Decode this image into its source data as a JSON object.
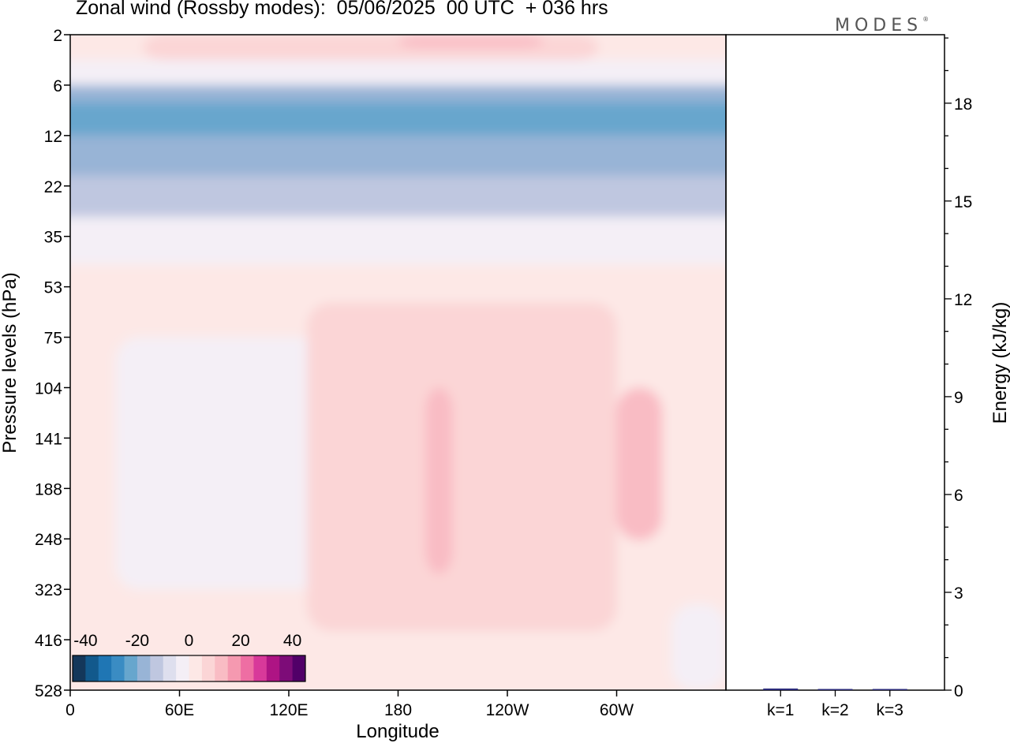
{
  "title": "Zonal wind (Rossby modes):  05/06/2025  00 UTC  + 036 hrs",
  "brand": "MODES",
  "brand_mark": "®",
  "chart_data": [
    {
      "type": "heatmap",
      "title": "Zonal wind (Rossby modes):  05/06/2025  00 UTC  + 036 hrs",
      "xlabel": "Longitude",
      "ylabel": "Pressure levels (hPa)",
      "xticks": [
        "0",
        "60E",
        "120E",
        "180",
        "120W",
        "60W"
      ],
      "xrange_deg_east": [
        0,
        360
      ],
      "yticks": [
        "2",
        "6",
        "12",
        "22",
        "35",
        "53",
        "75",
        "104",
        "141",
        "188",
        "248",
        "323",
        "416",
        "528"
      ],
      "colorbar": {
        "ticks": [
          "-40",
          "-20",
          "0",
          "20",
          "40"
        ],
        "range": [
          -45,
          45
        ],
        "colors": [
          "#14375a",
          "#12598c",
          "#1f76b4",
          "#3a8cc3",
          "#67a6cd",
          "#98b4d6",
          "#bfc7e0",
          "#dedfee",
          "#f4eff6",
          "#fde8e6",
          "#fbd5d6",
          "#f9bcc4",
          "#f599b0",
          "#ee6ea3",
          "#d8399a",
          "#ae1484",
          "#7d0c78",
          "#510068"
        ]
      },
      "regions": [
        {
          "lev_range": [
            "2",
            "4"
          ],
          "lon_range": [
            40,
            290
          ],
          "value": 5
        },
        {
          "lev_range": [
            "2",
            "3"
          ],
          "lon_range": [
            180,
            260
          ],
          "value": 10
        },
        {
          "lev_range": [
            "4",
            "6"
          ],
          "lon_range": [
            0,
            360
          ],
          "value": -5
        },
        {
          "lev_range": [
            "6",
            "8"
          ],
          "lon_range": [
            0,
            360
          ],
          "value": -20
        },
        {
          "lev_range": [
            "8",
            "12"
          ],
          "lon_range": [
            0,
            360
          ],
          "value": -25
        },
        {
          "lev_range": [
            "12",
            "20"
          ],
          "lon_range": [
            0,
            360
          ],
          "value": -20
        },
        {
          "lev_range": [
            "20",
            "30"
          ],
          "lon_range": [
            0,
            360
          ],
          "value": -15
        },
        {
          "lev_range": [
            "30",
            "45"
          ],
          "lon_range": [
            0,
            360
          ],
          "value": -5
        },
        {
          "lev_range": [
            "53",
            "528"
          ],
          "lon_range": [
            0,
            360
          ],
          "value": 2
        },
        {
          "lev_range": [
            "75",
            "323"
          ],
          "lon_range": [
            25,
            140
          ],
          "value": -2
        },
        {
          "lev_range": [
            "104",
            "150"
          ],
          "lon_range": [
            90,
            115
          ],
          "value": -5
        },
        {
          "lev_range": [
            "60",
            "400"
          ],
          "lon_range": [
            130,
            300
          ],
          "value": 5
        },
        {
          "lev_range": [
            "104",
            "300"
          ],
          "lon_range": [
            195,
            210
          ],
          "value": 10
        },
        {
          "lev_range": [
            "104",
            "250"
          ],
          "lon_range": [
            300,
            325
          ],
          "value": 10
        },
        {
          "lev_range": [
            "350",
            "528"
          ],
          "lon_range": [
            330,
            360
          ],
          "value": -2
        }
      ]
    },
    {
      "type": "bar",
      "categories": [
        "k=1",
        "k=2",
        "k=3"
      ],
      "values": [
        0.05,
        0.02,
        0.02
      ],
      "ylabel": "Energy (kJ/kg)",
      "ylim": [
        0,
        20.1
      ],
      "yticks": [
        0,
        3,
        6,
        9,
        12,
        15,
        18
      ],
      "bar_color": "#2b2b7a"
    }
  ]
}
